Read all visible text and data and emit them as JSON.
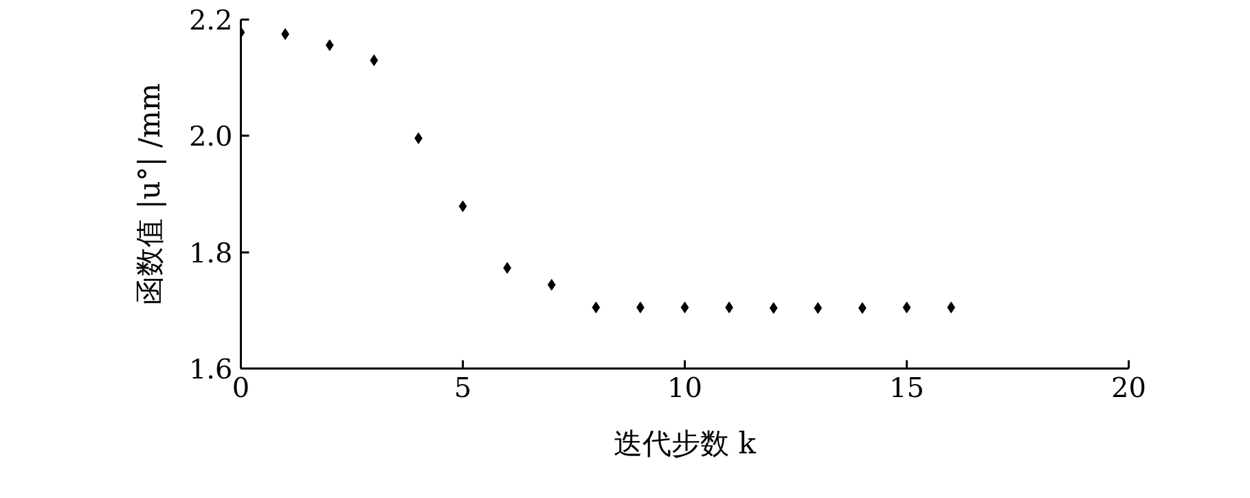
{
  "chart_data": {
    "type": "scatter",
    "xlabel": "迭代步数 k",
    "ylabel": "函数值 |u°| /mm",
    "x": [
      0,
      1,
      2,
      3,
      4,
      5,
      6,
      7,
      8,
      9,
      10,
      11,
      12,
      13,
      14,
      15,
      16
    ],
    "series": [
      {
        "color": "#000000",
        "values": [
          2.178,
          2.175,
          2.156,
          2.13,
          1.996,
          1.879,
          1.773,
          1.744,
          1.705,
          1.705,
          1.705,
          1.705,
          1.704,
          1.704,
          1.704,
          1.705,
          1.705
        ]
      }
    ],
    "xlim": [
      0,
      20
    ],
    "xticks": [
      0,
      5,
      10,
      15,
      20
    ],
    "ylim": [
      1.6,
      2.2
    ],
    "yticks": [
      {
        "value": 1.6,
        "label": "1.6"
      },
      {
        "value": 1.8,
        "label": "1.8"
      },
      {
        "value": 2.0,
        "label": "2.0"
      },
      {
        "value": 2.2,
        "label": "2.2"
      }
    ],
    "marker": "diamond",
    "grid": false
  }
}
